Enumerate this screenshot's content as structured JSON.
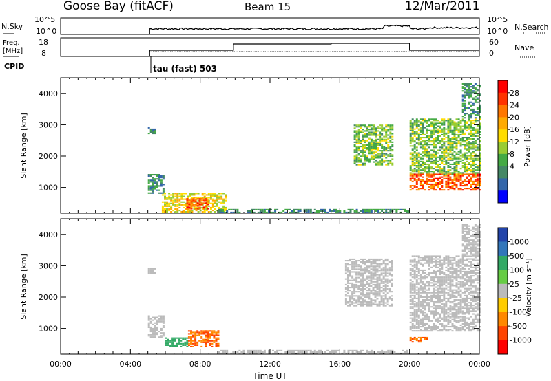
{
  "header": {
    "station": "Goose Bay (fitACF)",
    "beam": "Beam 15",
    "date": "12/Mar/2011"
  },
  "noise_panel": {
    "left_label": "N.Sky",
    "right_label": "N.Search",
    "ticks_left": [
      "10^5",
      "10^0"
    ],
    "ticks_right": [
      "10^5",
      "10^0"
    ]
  },
  "freq_panel": {
    "left_label_1": "Freq.",
    "left_label_2": "[MHz]",
    "right_label": "Nave",
    "ticks_left": [
      "18",
      "8"
    ],
    "ticks_right": [
      "60",
      "0"
    ]
  },
  "cpid": {
    "label": "CPID",
    "program": "tau (fast) 503"
  },
  "x_axis": {
    "title": "Time UT",
    "ticks": [
      "00:00",
      "04:00",
      "08:00",
      "12:00",
      "16:00",
      "20:00",
      "00:00"
    ]
  },
  "chart_data": [
    {
      "type": "heatmap",
      "name": "power",
      "ylabel": "Slant Range [km]",
      "y_ticks": [
        "4000",
        "3000",
        "2000",
        "1000"
      ],
      "x_range_hours": [
        0,
        24
      ],
      "y_range_km": [
        180,
        4500
      ],
      "colorbar_label": "Power [dB]",
      "colorbar_ticks": [
        "28",
        "24",
        "20",
        "16",
        "12",
        "8",
        "4"
      ],
      "colorbar_colors": [
        "#ff0000",
        "#ff3300",
        "#ff7700",
        "#ffaa00",
        "#ffdd00",
        "#99cc33",
        "#44aa44",
        "#448866",
        "#3366aa",
        "#0000ff"
      ],
      "regions": [
        {
          "t0": 5.0,
          "t1": 5.4,
          "r0": 2700,
          "r1": 2900,
          "value": 8
        },
        {
          "t0": 5.0,
          "t1": 5.9,
          "r0": 800,
          "r1": 1400,
          "value": 8
        },
        {
          "t0": 5.8,
          "t1": 9.5,
          "r0": 200,
          "r1": 800,
          "value": 16
        },
        {
          "t0": 7.2,
          "t1": 8.4,
          "r0": 300,
          "r1": 650,
          "value": 24
        },
        {
          "t0": 9.0,
          "t1": 20.0,
          "r0": 180,
          "r1": 280,
          "value": 8
        },
        {
          "t0": 16.8,
          "t1": 19.0,
          "r0": 1700,
          "r1": 3000,
          "value": 12
        },
        {
          "t0": 20.0,
          "t1": 24.0,
          "r0": 1400,
          "r1": 3200,
          "value": 12
        },
        {
          "t0": 20.0,
          "t1": 24.0,
          "r0": 900,
          "r1": 1400,
          "value": 24
        },
        {
          "t0": 23.0,
          "t1": 24.0,
          "r0": 3200,
          "r1": 4300,
          "value": 8
        }
      ]
    },
    {
      "type": "heatmap",
      "name": "velocity",
      "ylabel": "Slant Range [km]",
      "y_ticks": [
        "4000",
        "3000",
        "2000",
        "1000"
      ],
      "x_range_hours": [
        0,
        24
      ],
      "y_range_km": [
        180,
        4500
      ],
      "colorbar_label": "Velocity [m s⁻¹]",
      "colorbar_ticks": [
        "1000",
        "500",
        "100",
        "25",
        "-25",
        "-100",
        "-500",
        "-1000"
      ],
      "colorbar_colors": [
        "#2244aa",
        "#3377bb",
        "#33aa66",
        "#66cc44",
        "#bbbbbb",
        "#ffcc00",
        "#ff8800",
        "#ff4400",
        "#ff0000"
      ],
      "regions": [
        {
          "t0": 5.0,
          "t1": 5.4,
          "r0": 2700,
          "r1": 2900,
          "value": 0
        },
        {
          "t0": 5.0,
          "t1": 5.9,
          "r0": 700,
          "r1": 1400,
          "value": 0
        },
        {
          "t0": 6.0,
          "t1": 7.3,
          "r0": 400,
          "r1": 700,
          "value": 100
        },
        {
          "t0": 7.3,
          "t1": 9.0,
          "r0": 400,
          "r1": 900,
          "value": -300
        },
        {
          "t0": 9.0,
          "t1": 20.0,
          "r0": 180,
          "r1": 280,
          "value": 0
        },
        {
          "t0": 16.3,
          "t1": 19.0,
          "r0": 1700,
          "r1": 3200,
          "value": 0
        },
        {
          "t0": 20.0,
          "t1": 24.0,
          "r0": 900,
          "r1": 3300,
          "value": 0
        },
        {
          "t0": 20.0,
          "t1": 21.0,
          "r0": 550,
          "r1": 700,
          "value": -300
        },
        {
          "t0": 23.0,
          "t1": 24.0,
          "r0": 3300,
          "r1": 4300,
          "value": 0
        }
      ]
    }
  ]
}
